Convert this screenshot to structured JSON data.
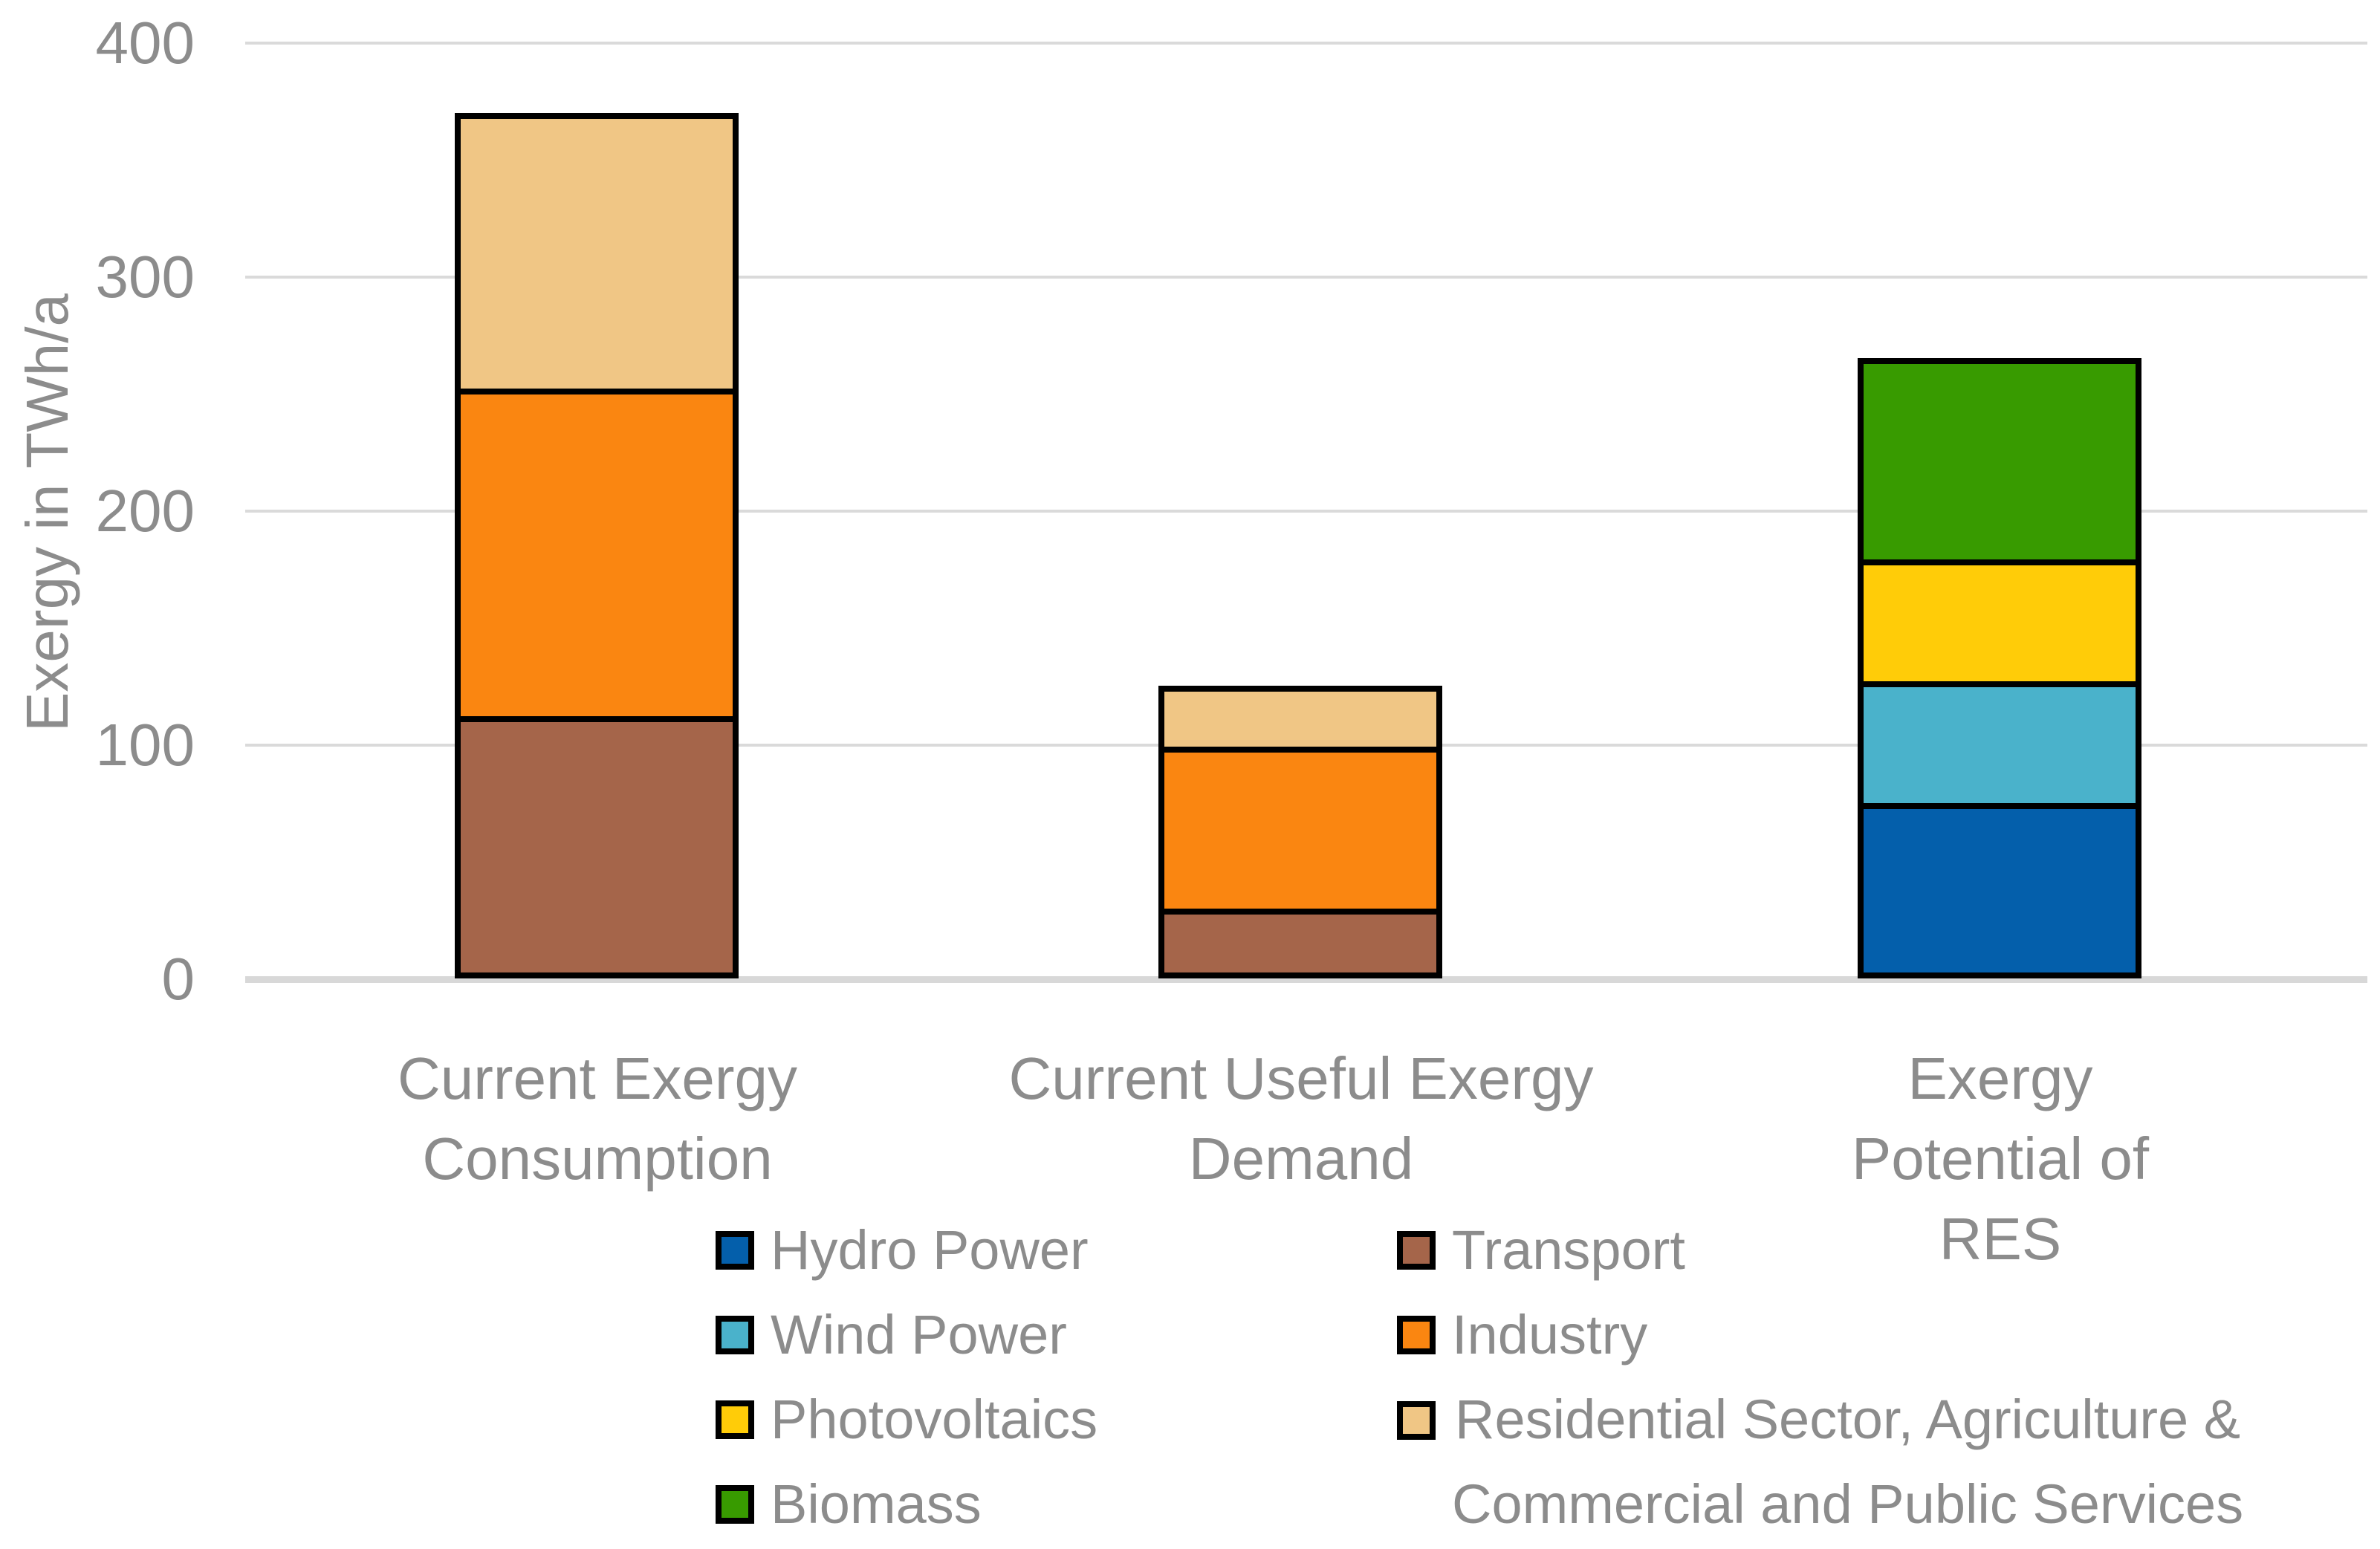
{
  "figure": {
    "background": "#FFFFFF",
    "text_color": "#8C8C8C"
  },
  "axis": {
    "y_title": "Exergy in TWh/a",
    "y_ticks": [
      {
        "label": "400",
        "value": 400
      },
      {
        "label": "300",
        "value": 300
      },
      {
        "label": "200",
        "value": 200
      },
      {
        "label": "100",
        "value": 100
      },
      {
        "label": "0",
        "value": 0
      }
    ],
    "grid_color": "#DADADA",
    "axis_line_color": "#D8D8D8"
  },
  "chart_data": {
    "type": "bar",
    "subtype": "stacked",
    "title": "",
    "xlabel": "",
    "ylabel": "Exergy in TWh/a",
    "ylim": [
      0,
      400
    ],
    "grid": "horizontal",
    "legend_position": "bottom",
    "categories": [
      "Current Exergy\nConsumption",
      "Current Useful Exergy\nDemand",
      "Exergy Potential of RES"
    ],
    "series": [
      {
        "name": "Transport",
        "color": "#A5654A",
        "values": [
          112,
          30,
          0
        ]
      },
      {
        "name": "Industry",
        "color": "#FA8611",
        "values": [
          140,
          69,
          0
        ]
      },
      {
        "name": "Residential Sector, Agriculture & Commercial and Public Services",
        "color": "#F0C685",
        "values": [
          118,
          26,
          0
        ]
      },
      {
        "name": "Hydro Power",
        "color": "#045FAB",
        "values": [
          0,
          0,
          75
        ]
      },
      {
        "name": "Wind Power",
        "color": "#4AB2CB",
        "values": [
          0,
          0,
          52
        ]
      },
      {
        "name": "Photovoltaics",
        "color": "#FFCC08",
        "values": [
          0,
          0,
          52
        ]
      },
      {
        "name": "Biomass",
        "color": "#389B00",
        "values": [
          0,
          0,
          86
        ]
      }
    ],
    "stack_totals": [
      370,
      125,
      265
    ],
    "segment_border_color": "#000000"
  },
  "legend": {
    "left_column": [
      {
        "label": "Hydro Power",
        "color": "#045FAB"
      },
      {
        "label": "Wind Power",
        "color": "#4AB2CB"
      },
      {
        "label": "Photovoltaics",
        "color": "#FFCC08"
      },
      {
        "label": "Biomass",
        "color": "#389B00"
      }
    ],
    "right_column": [
      {
        "label": "Transport",
        "color": "#A5654A"
      },
      {
        "label": "Industry",
        "color": "#FA8611"
      },
      {
        "label": "Residential Sector, Agriculture &\nCommercial and Public Services",
        "color": "#F0C685"
      }
    ]
  }
}
